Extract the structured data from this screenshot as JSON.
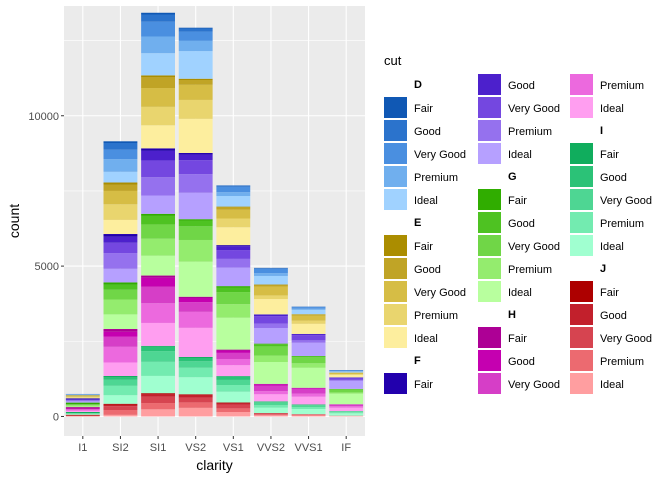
{
  "chart_data": {
    "type": "bar",
    "stacked": true,
    "xlabel": "clarity",
    "ylabel": "count",
    "ylim": [
      -650,
      13650
    ],
    "yticks": [
      0,
      5000,
      10000
    ],
    "grid": true,
    "legend_title": "cut",
    "legend_position": "right",
    "categories": [
      "I1",
      "SI2",
      "SI1",
      "VS2",
      "VS1",
      "VVS2",
      "VVS1",
      "IF"
    ],
    "colors": [
      "D",
      "E",
      "F",
      "G",
      "H",
      "I",
      "J"
    ],
    "cuts": [
      "Fair",
      "Good",
      "Very Good",
      "Premium",
      "Ideal"
    ],
    "fill_colors": {
      "D": [
        "#1058b4",
        "#2b73cc",
        "#4a8fe0",
        "#70afee",
        "#a0d2ff"
      ],
      "E": [
        "#ab8d00",
        "#c0a426",
        "#d6bd45",
        "#e9d56e",
        "#fdee9e"
      ],
      "F": [
        "#2200ad",
        "#4c20cc",
        "#7447e0",
        "#9571ee",
        "#b6a0ff"
      ],
      "G": [
        "#30ad00",
        "#4ec222",
        "#70d647",
        "#94ec6e",
        "#b8ff9e"
      ],
      "H": [
        "#ad0095",
        "#c500b0",
        "#d63ec7",
        "#ec69de",
        "#ff9ef0"
      ],
      "I": [
        "#10ad5d",
        "#2bc277",
        "#4ed693",
        "#73ebb0",
        "#a0ffd0"
      ],
      "J": [
        "#ad0000",
        "#c2202c",
        "#d64450",
        "#ec6a70",
        "#ff9ea0"
      ]
    },
    "series": [
      {
        "name": "D Fair",
        "values": [
          4,
          56,
          58,
          25,
          5,
          9,
          3,
          3
        ]
      },
      {
        "name": "D Good",
        "values": [
          8,
          223,
          237,
          104,
          43,
          25,
          13,
          9
        ]
      },
      {
        "name": "D Very Good",
        "values": [
          5,
          314,
          494,
          309,
          175,
          141,
          52,
          23
        ]
      },
      {
        "name": "D Premium",
        "values": [
          12,
          421,
          556,
          339,
          131,
          94,
          40,
          21
        ]
      },
      {
        "name": "D Ideal",
        "values": [
          13,
          356,
          738,
          920,
          351,
          284,
          144,
          28
        ]
      },
      {
        "name": "E Fair",
        "values": [
          9,
          78,
          65,
          42,
          14,
          13,
          3,
          0
        ]
      },
      {
        "name": "E Good",
        "values": [
          23,
          202,
          355,
          160,
          89,
          52,
          43,
          9
        ]
      },
      {
        "name": "E Very Good",
        "values": [
          22,
          445,
          626,
          503,
          293,
          298,
          170,
          43
        ]
      },
      {
        "name": "E Premium",
        "values": [
          30,
          519,
          614,
          629,
          292,
          121,
          105,
          27
        ]
      },
      {
        "name": "E Ideal",
        "values": [
          18,
          469,
          766,
          1136,
          593,
          507,
          335,
          79
        ]
      },
      {
        "name": "F Fair",
        "values": [
          35,
          89,
          83,
          53,
          33,
          10,
          5,
          4
        ]
      },
      {
        "name": "F Good",
        "values": [
          19,
          201,
          319,
          184,
          132,
          50,
          35,
          15
        ]
      },
      {
        "name": "F Very Good",
        "values": [
          13,
          343,
          559,
          466,
          293,
          249,
          174,
          67
        ]
      },
      {
        "name": "F Premium",
        "values": [
          34,
          523,
          608,
          619,
          290,
          146,
          80,
          31
        ]
      },
      {
        "name": "F Ideal",
        "values": [
          42,
          453,
          608,
          879,
          616,
          520,
          440,
          268
        ]
      },
      {
        "name": "G Fair",
        "values": [
          53,
          80,
          69,
          45,
          45,
          17,
          3,
          2
        ]
      },
      {
        "name": "G Good",
        "values": [
          19,
          163,
          284,
          192,
          152,
          75,
          41,
          16
        ]
      },
      {
        "name": "G Very Good",
        "values": [
          16,
          327,
          474,
          454,
          403,
          306,
          199,
          100
        ]
      },
      {
        "name": "G Premium",
        "values": [
          46,
          494,
          566,
          721,
          450,
          213,
          149,
          42
        ]
      },
      {
        "name": "G Ideal",
        "values": [
          16,
          486,
          660,
          1167,
          1061,
          727,
          665,
          350
        ]
      },
      {
        "name": "H Fair",
        "values": [
          52,
          91,
          75,
          41,
          32,
          11,
          1,
          0
        ]
      },
      {
        "name": "H Good",
        "values": [
          14,
          158,
          299,
          138,
          77,
          45,
          31,
          4
        ]
      },
      {
        "name": "H Very Good",
        "values": [
          12,
          343,
          547,
          323,
          203,
          186,
          162,
          62
        ]
      },
      {
        "name": "H Premium",
        "values": [
          46,
          521,
          655,
          532,
          206,
          104,
          102,
          50
        ]
      },
      {
        "name": "H Ideal",
        "values": [
          38,
          450,
          763,
          970,
          362,
          235,
          259,
          112
        ]
      },
      {
        "name": "I Fair",
        "values": [
          34,
          45,
          30,
          32,
          25,
          8,
          1,
          0
        ]
      },
      {
        "name": "I Good",
        "values": [
          9,
          81,
          143,
          110,
          103,
          26,
          22,
          6
        ]
      },
      {
        "name": "I Very Good",
        "values": [
          8,
          200,
          358,
          216,
          170,
          95,
          69,
          34
        ]
      },
      {
        "name": "I Premium",
        "values": [
          24,
          312,
          468,
          315,
          223,
          82,
          59,
          35
        ]
      },
      {
        "name": "I Ideal",
        "values": [
          17,
          285,
          574,
          565,
          359,
          180,
          171,
          79
        ]
      },
      {
        "name": "J Fair",
        "values": [
          23,
          27,
          28,
          23,
          16,
          1,
          1,
          0
        ]
      },
      {
        "name": "J Good",
        "values": [
          11,
          53,
          89,
          90,
          52,
          13,
          1,
          6
        ]
      },
      {
        "name": "J Very Good",
        "values": [
          8,
          128,
          211,
          159,
          127,
          28,
          19,
          5
        ]
      },
      {
        "name": "J Premium",
        "values": [
          13,
          161,
          209,
          181,
          121,
          32,
          24,
          4
        ]
      },
      {
        "name": "J Ideal",
        "values": [
          2,
          53,
          237,
          286,
          147,
          38,
          32,
          10
        ]
      }
    ]
  }
}
